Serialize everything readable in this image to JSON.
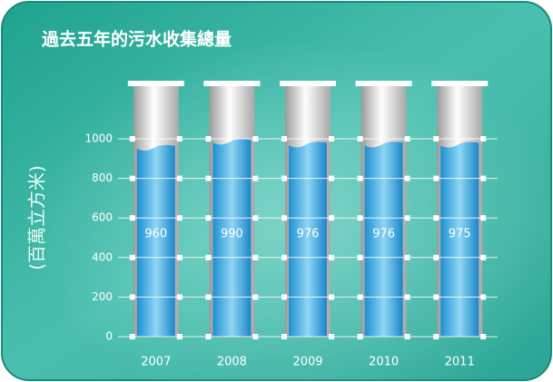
{
  "chart_data": {
    "type": "bar",
    "title": "過去五年的污水收集總量",
    "y_label": "(百萬立方米)",
    "categories": [
      "2007",
      "2008",
      "2009",
      "2010",
      "2011"
    ],
    "values": [
      960,
      990,
      976,
      976,
      975
    ],
    "color": "#3aa6dc",
    "ylim": [
      0,
      1000
    ],
    "yticks": [
      0,
      200,
      400,
      600,
      800,
      1000
    ],
    "grid": true
  }
}
